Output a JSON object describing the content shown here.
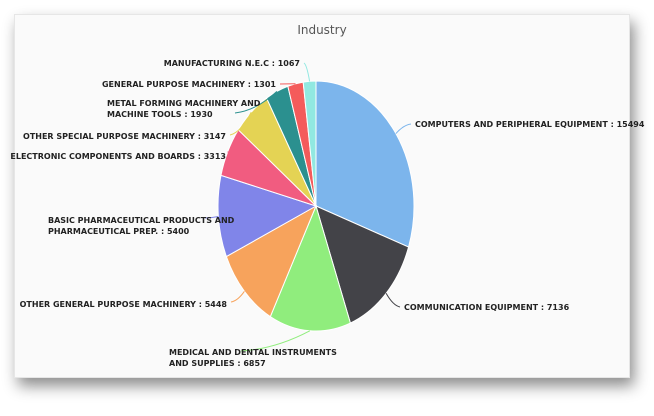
{
  "chart_data": {
    "type": "pie",
    "title": "Industry",
    "slices": [
      {
        "label": "COMPUTERS AND PERIPHERAL EQUIPMENT",
        "value": 15494,
        "color": "#7cb5ec"
      },
      {
        "label": "COMMUNICATION EQUIPMENT",
        "value": 7136,
        "color": "#434348"
      },
      {
        "label": "MEDICAL AND DENTAL INSTRUMENTS AND SUPPLIES",
        "value": 6857,
        "color": "#90ed7d"
      },
      {
        "label": "OTHER GENERAL PURPOSE MACHINERY",
        "value": 5448,
        "color": "#f7a35c"
      },
      {
        "label": "BASIC PHARMACEUTICAL PRODUCTS AND PHARMACEUTICAL PREP.",
        "value": 5400,
        "color": "#8085e9"
      },
      {
        "label": "ELECTRONIC COMPONENTS AND BOARDS",
        "value": 3313,
        "color": "#f15c80"
      },
      {
        "label": "OTHER SPECIAL PURPOSE MACHINERY",
        "value": 3147,
        "color": "#e4d354"
      },
      {
        "label": "METAL FORMING MACHINERY AND MACHINE TOOLS",
        "value": 1930,
        "color": "#2b908f"
      },
      {
        "label": "GENERAL PURPOSE MACHINERY",
        "value": 1301,
        "color": "#f45b5b"
      },
      {
        "label": "MANUFACTURING N.E.C",
        "value": 1067,
        "color": "#91e8e1"
      }
    ],
    "labels": [
      {
        "lines": [
          "COMPUTERS AND PERIPHERAL EQUIPMENT : 15494"
        ]
      },
      {
        "lines": [
          "COMMUNICATION EQUIPMENT : 7136"
        ]
      },
      {
        "lines": [
          "MEDICAL AND DENTAL INSTRUMENTS",
          "AND SUPPLIES : 6857"
        ]
      },
      {
        "lines": [
          "OTHER GENERAL PURPOSE MACHINERY : 5448"
        ]
      },
      {
        "lines": [
          "BASIC PHARMACEUTICAL PRODUCTS AND",
          "PHARMACEUTICAL PREP. : 5400"
        ]
      },
      {
        "lines": [
          "ELECTRONIC COMPONENTS AND BOARDS : 3313"
        ]
      },
      {
        "lines": [
          "OTHER SPECIAL PURPOSE MACHINERY : 3147"
        ]
      },
      {
        "lines": [
          "METAL FORMING MACHINERY AND",
          "MACHINE TOOLS : 1930"
        ]
      },
      {
        "lines": [
          "GENERAL PURPOSE MACHINERY : 1301"
        ]
      },
      {
        "lines": [
          "MANUFACTURING N.E.C : 1067"
        ]
      }
    ],
    "legend": "none"
  }
}
